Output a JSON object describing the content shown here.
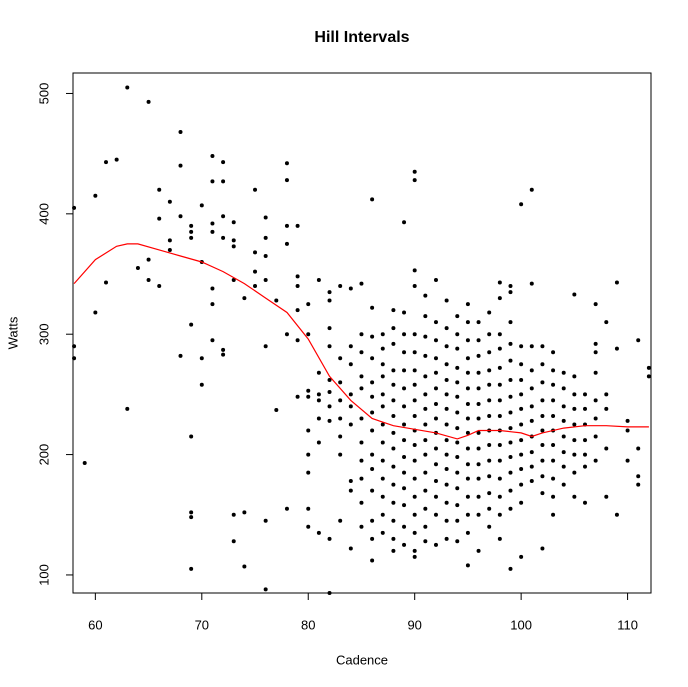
{
  "chart_data": {
    "type": "scatter",
    "title": "Hill Intervals",
    "x_label": "Cadence",
    "y_label": "Watts",
    "xlim": [
      57.9,
      112.2
    ],
    "ylim": [
      85,
      517
    ],
    "xticks": [
      60,
      70,
      80,
      90,
      100,
      110
    ],
    "yticks": [
      100,
      200,
      300,
      400,
      500
    ],
    "color": "black",
    "points": [
      {
        "x": 58,
        "values": [
          405,
          290,
          280
        ]
      },
      {
        "x": 59,
        "values": [
          193
        ]
      },
      {
        "x": 60,
        "values": [
          415,
          318
        ]
      },
      {
        "x": 61,
        "values": [
          443,
          343
        ]
      },
      {
        "x": 62,
        "values": [
          445
        ]
      },
      {
        "x": 63,
        "values": [
          505,
          238
        ]
      },
      {
        "x": 64,
        "values": [
          355
        ]
      },
      {
        "x": 65,
        "values": [
          493,
          362,
          345
        ]
      },
      {
        "x": 66,
        "values": [
          420,
          396,
          340
        ]
      },
      {
        "x": 67,
        "values": [
          410,
          378,
          370
        ]
      },
      {
        "x": 68,
        "values": [
          468,
          440,
          398,
          282
        ]
      },
      {
        "x": 69,
        "values": [
          390,
          385,
          380,
          308,
          215,
          152,
          148,
          105
        ]
      },
      {
        "x": 70,
        "values": [
          407,
          360,
          280,
          258
        ]
      },
      {
        "x": 71,
        "values": [
          448,
          427,
          392,
          385,
          338,
          325,
          295
        ]
      },
      {
        "x": 72,
        "values": [
          443,
          427,
          398,
          380,
          287,
          283
        ]
      },
      {
        "x": 73,
        "values": [
          393,
          378,
          373,
          345,
          150,
          128
        ]
      },
      {
        "x": 74,
        "values": [
          330,
          152,
          107
        ]
      },
      {
        "x": 75,
        "values": [
          420,
          368,
          352,
          340
        ]
      },
      {
        "x": 76,
        "values": [
          397,
          380,
          365,
          345,
          290,
          145,
          88
        ]
      },
      {
        "x": 77,
        "values": [
          328,
          237
        ]
      },
      {
        "x": 78,
        "values": [
          442,
          428,
          390,
          375,
          300,
          155
        ]
      },
      {
        "x": 79,
        "values": [
          390,
          348,
          340,
          320,
          295,
          248
        ]
      },
      {
        "x": 80,
        "values": [
          325,
          300,
          253,
          248,
          220,
          200,
          185,
          155,
          140
        ]
      },
      {
        "x": 81,
        "values": [
          345,
          268,
          250,
          245,
          230,
          210,
          135
        ]
      },
      {
        "x": 82,
        "values": [
          335,
          328,
          305,
          290,
          262,
          252,
          240,
          228,
          130,
          85
        ]
      },
      {
        "x": 83,
        "values": [
          340,
          280,
          260,
          245,
          230,
          215,
          200,
          145
        ]
      },
      {
        "x": 84,
        "values": [
          338,
          290,
          275,
          250,
          240,
          225,
          178,
          170,
          122
        ]
      },
      {
        "x": 85,
        "values": [
          342,
          300,
          285,
          265,
          255,
          230,
          210,
          195,
          180,
          160,
          140
        ]
      },
      {
        "x": 86,
        "values": [
          412,
          322,
          298,
          280,
          260,
          248,
          235,
          220,
          200,
          188,
          170,
          145,
          130,
          112
        ]
      },
      {
        "x": 87,
        "values": [
          300,
          288,
          275,
          265,
          250,
          240,
          225,
          210,
          195,
          180,
          165,
          150,
          135
        ]
      },
      {
        "x": 88,
        "values": [
          320,
          305,
          292,
          270,
          258,
          245,
          232,
          218,
          205,
          190,
          175,
          160,
          145,
          130,
          120
        ]
      },
      {
        "x": 89,
        "values": [
          393,
          318,
          300,
          285,
          270,
          255,
          240,
          225,
          212,
          198,
          185,
          172,
          158,
          140,
          125
        ]
      },
      {
        "x": 90,
        "values": [
          435,
          428,
          353,
          340,
          300,
          285,
          270,
          258,
          245,
          232,
          220,
          208,
          195,
          180,
          165,
          150,
          135,
          120,
          115
        ]
      },
      {
        "x": 91,
        "values": [
          332,
          315,
          298,
          282,
          265,
          250,
          238,
          225,
          212,
          200,
          185,
          170,
          155,
          140,
          128
        ]
      },
      {
        "x": 92,
        "values": [
          345,
          310,
          295,
          280,
          268,
          255,
          242,
          230,
          218,
          205,
          192,
          178,
          165,
          150,
          125
        ]
      },
      {
        "x": 93,
        "values": [
          328,
          305,
          290,
          275,
          262,
          250,
          238,
          225,
          212,
          200,
          188,
          175,
          160,
          145,
          130
        ]
      },
      {
        "x": 94,
        "values": [
          315,
          300,
          288,
          272,
          260,
          248,
          235,
          222,
          210,
          198,
          185,
          172,
          158,
          145,
          128
        ]
      },
      {
        "x": 95,
        "values": [
          325,
          310,
          295,
          280,
          268,
          255,
          242,
          230,
          218,
          205,
          192,
          180,
          165,
          150,
          135,
          108
        ]
      },
      {
        "x": 96,
        "values": [
          310,
          295,
          282,
          268,
          255,
          242,
          230,
          218,
          205,
          192,
          180,
          165,
          150,
          120
        ]
      },
      {
        "x": 97,
        "values": [
          318,
          300,
          285,
          270,
          258,
          245,
          232,
          220,
          208,
          195,
          182,
          168,
          155,
          140
        ]
      },
      {
        "x": 98,
        "values": [
          343,
          330,
          300,
          288,
          272,
          258,
          245,
          232,
          220,
          208,
          195,
          180,
          165,
          150,
          130
        ]
      },
      {
        "x": 99,
        "values": [
          340,
          335,
          310,
          292,
          278,
          262,
          248,
          235,
          222,
          210,
          198,
          185,
          170,
          155,
          105
        ]
      },
      {
        "x": 100,
        "values": [
          408,
          290,
          275,
          262,
          250,
          238,
          225,
          212,
          200,
          188,
          175,
          160,
          115
        ]
      },
      {
        "x": 101,
        "values": [
          420,
          342,
          290,
          270,
          255,
          240,
          228,
          215,
          202,
          190,
          178
        ]
      },
      {
        "x": 102,
        "values": [
          290,
          275,
          260,
          245,
          232,
          220,
          208,
          195,
          182,
          168,
          122
        ]
      },
      {
        "x": 103,
        "values": [
          285,
          270,
          258,
          245,
          232,
          220,
          208,
          195,
          180,
          165,
          150
        ]
      },
      {
        "x": 104,
        "values": [
          268,
          255,
          240,
          228,
          215,
          202,
          190,
          175
        ]
      },
      {
        "x": 105,
        "values": [
          333,
          265,
          250,
          238,
          225,
          212,
          200,
          185,
          165
        ]
      },
      {
        "x": 106,
        "values": [
          250,
          238,
          225,
          212,
          200,
          190,
          160
        ]
      },
      {
        "x": 107,
        "values": [
          325,
          292,
          285,
          268,
          245,
          230,
          215,
          195
        ]
      },
      {
        "x": 108,
        "values": [
          310,
          250,
          238,
          205,
          165
        ]
      },
      {
        "x": 109,
        "values": [
          343,
          288,
          150
        ]
      },
      {
        "x": 110,
        "values": [
          228,
          220,
          195
        ]
      },
      {
        "x": 111,
        "values": [
          295,
          205,
          182,
          175
        ]
      },
      {
        "x": 112,
        "values": [
          272,
          265
        ]
      }
    ],
    "smooth": {
      "color": "red",
      "x": [
        58,
        60,
        62,
        63,
        64,
        66,
        68,
        70,
        72,
        74,
        76,
        78,
        80,
        82,
        84,
        86,
        88,
        90,
        92,
        94,
        95,
        96,
        98,
        100,
        101,
        102,
        104,
        106,
        108,
        110,
        112
      ],
      "values": [
        342,
        362,
        373,
        375,
        375,
        370,
        365,
        360,
        352,
        342,
        330,
        318,
        296,
        265,
        245,
        230,
        224,
        221,
        218,
        213,
        216,
        220,
        220,
        218,
        215,
        218,
        222,
        224,
        224,
        223,
        223
      ]
    }
  }
}
